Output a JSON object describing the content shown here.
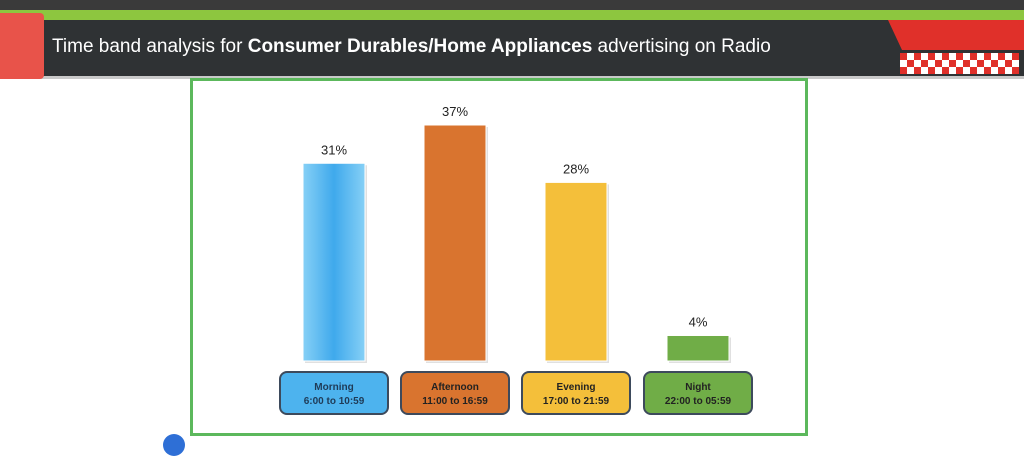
{
  "header": {
    "title_prefix": "Time band analysis for ",
    "title_bold": "Consumer Durables/Home Appliances",
    "title_suffix": " advertising on Radio"
  },
  "chart_data": {
    "type": "bar",
    "categories": [
      "Morning",
      "Afternoon",
      "Evening",
      "Night"
    ],
    "category_sublabels": [
      "6:00 to 10:59",
      "11:00 to 16:59",
      "17:00 to 21:59",
      "22:00 to 05:59"
    ],
    "values": [
      31,
      37,
      28,
      4
    ],
    "value_labels": [
      "31%",
      "37%",
      "28%",
      "4%"
    ],
    "colors": [
      "#4db3ee",
      "#d9742f",
      "#f4bf3a",
      "#70ad47"
    ],
    "ylim": [
      0,
      37
    ],
    "grid": false
  }
}
